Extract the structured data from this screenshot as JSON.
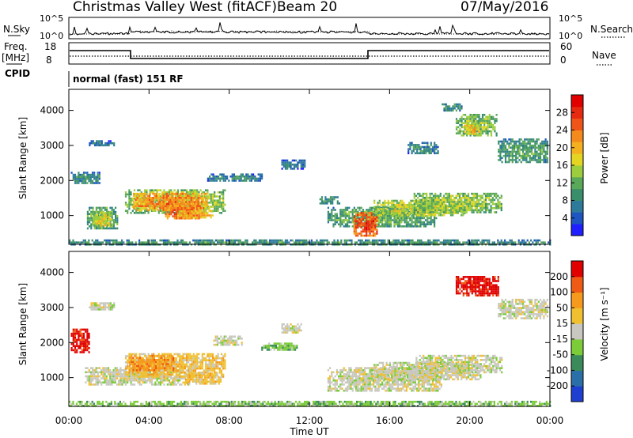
{
  "header": {
    "station": "Christmas Valley West (fitACF)",
    "beam": "Beam 20",
    "date": "07/May/2016"
  },
  "panels": {
    "nsky": {
      "label": "N.Sky",
      "ticks": [
        "10^5",
        "10^0"
      ]
    },
    "nsearch": {
      "label": "N.Search",
      "ticks": [
        "10^5",
        "10^0"
      ]
    },
    "freq": {
      "label_line1": "Freq.",
      "label_line2": "[MHz]",
      "ticks": [
        "18",
        "8"
      ]
    },
    "nave": {
      "label": "Nave",
      "ticks": [
        "60",
        "0"
      ]
    },
    "cpid": {
      "label": "CPID",
      "value": "normal (fast) 151 RF"
    }
  },
  "chart_data": [
    {
      "type": "heatmap",
      "name": "power",
      "ylabel": "Slant Range [km]",
      "xlabel": "Time UT",
      "xlim": [
        "00:00",
        "24:00"
      ],
      "ylim": [
        180,
        4600
      ],
      "x_ticks": [
        "00:00",
        "04:00",
        "08:00",
        "12:00",
        "16:00",
        "20:00",
        "00:00"
      ],
      "y_ticks": [
        1000,
        2000,
        3000,
        4000
      ],
      "colorbar": {
        "label": "Power [dB]",
        "ticks": [
          "4",
          "8",
          "12",
          "16",
          "20",
          "24",
          "28"
        ],
        "range": [
          0,
          32
        ],
        "colors": [
          "#1f1fff",
          "#1f55c0",
          "#2e7a9a",
          "#3a8f6a",
          "#5aa85a",
          "#9ccd3c",
          "#e3d522",
          "#f5b020",
          "#f58a1c",
          "#ef5518",
          "#e52a10",
          "#e00000"
        ]
      },
      "regions": [
        {
          "t0": 0.9,
          "t1": 2.4,
          "r0": 650,
          "r1": 1250,
          "level": 13
        },
        {
          "t0": 1.2,
          "t1": 2.1,
          "r0": 700,
          "r1": 1100,
          "level": 18
        },
        {
          "t0": 2.8,
          "t1": 7.8,
          "r0": 1100,
          "r1": 1750,
          "level": 16
        },
        {
          "t0": 3.2,
          "t1": 6.9,
          "r0": 1150,
          "r1": 1650,
          "level": 24
        },
        {
          "t0": 4.8,
          "t1": 6.6,
          "r0": 900,
          "r1": 1300,
          "level": 26
        },
        {
          "t0": 5.4,
          "t1": 7.2,
          "r0": 950,
          "r1": 1150,
          "level": 22
        },
        {
          "t0": 1.0,
          "t1": 2.3,
          "r0": 3000,
          "r1": 3150,
          "level": 7
        },
        {
          "t0": 0.1,
          "t1": 1.5,
          "r0": 1950,
          "r1": 2250,
          "level": 9
        },
        {
          "t0": 6.9,
          "t1": 9.6,
          "r0": 2000,
          "r1": 2200,
          "level": 8
        },
        {
          "t0": 12.9,
          "t1": 18.3,
          "r0": 700,
          "r1": 1250,
          "level": 12
        },
        {
          "t0": 14.2,
          "t1": 15.4,
          "r0": 450,
          "r1": 1100,
          "level": 28
        },
        {
          "t0": 15.2,
          "t1": 19.8,
          "r0": 1000,
          "r1": 1450,
          "level": 17
        },
        {
          "t0": 17.2,
          "t1": 21.6,
          "r0": 1100,
          "r1": 1650,
          "level": 15
        },
        {
          "t0": 12.5,
          "t1": 13.5,
          "r0": 1350,
          "r1": 1550,
          "level": 10
        },
        {
          "t0": 19.3,
          "t1": 21.3,
          "r0": 3300,
          "r1": 3900,
          "level": 14
        },
        {
          "t0": 19.7,
          "t1": 20.4,
          "r0": 3350,
          "r1": 3650,
          "level": 20
        },
        {
          "t0": 21.4,
          "t1": 23.9,
          "r0": 2550,
          "r1": 3200,
          "level": 11
        },
        {
          "t0": 16.9,
          "t1": 18.4,
          "r0": 2750,
          "r1": 3100,
          "level": 8
        },
        {
          "t0": 10.6,
          "t1": 11.8,
          "r0": 2350,
          "r1": 2600,
          "level": 7
        },
        {
          "t0": 18.6,
          "t1": 19.6,
          "r0": 4000,
          "r1": 4200,
          "level": 9
        },
        {
          "t0": 0.0,
          "t1": 24.0,
          "r0": 180,
          "r1": 320,
          "level": 10
        }
      ]
    },
    {
      "type": "heatmap",
      "name": "velocity",
      "ylabel": "Slant Range [km]",
      "xlabel": "Time UT",
      "xlim": [
        "00:00",
        "24:00"
      ],
      "ylim": [
        180,
        4600
      ],
      "x_ticks": [
        "00:00",
        "04:00",
        "08:00",
        "12:00",
        "16:00",
        "20:00",
        "00:00"
      ],
      "y_ticks": [
        1000,
        2000,
        3000,
        4000
      ],
      "colorbar": {
        "label": "Velocity [m s⁻¹]",
        "ticks": [
          "200",
          "100",
          "50",
          "15",
          "-15",
          "-50",
          "-100",
          "-200"
        ],
        "colors": [
          "#1f3fd0",
          "#2b6fa8",
          "#3a8a5a",
          "#7ccc3a",
          "#c8c8c0",
          "#f0c030",
          "#f59a1c",
          "#ef5a14",
          "#e00000"
        ]
      },
      "regions": [
        {
          "t0": 0.8,
          "t1": 6.0,
          "r0": 800,
          "r1": 1300,
          "level": 4
        },
        {
          "t0": 2.8,
          "t1": 7.8,
          "r0": 1000,
          "r1": 1700,
          "level": 5
        },
        {
          "t0": 3.0,
          "t1": 5.2,
          "r0": 1200,
          "r1": 1650,
          "level": 6
        },
        {
          "t0": 5.8,
          "t1": 7.6,
          "r0": 800,
          "r1": 1150,
          "level": 5
        },
        {
          "t0": 0.1,
          "t1": 1.0,
          "r0": 1700,
          "r1": 2400,
          "level": 8
        },
        {
          "t0": 1.0,
          "t1": 2.3,
          "r0": 2950,
          "r1": 3150,
          "level": 4
        },
        {
          "t0": 7.2,
          "t1": 8.6,
          "r0": 1950,
          "r1": 2200,
          "level": 4
        },
        {
          "t0": 9.6,
          "t1": 11.4,
          "r0": 1800,
          "r1": 2000,
          "level": 3
        },
        {
          "t0": 10.6,
          "t1": 11.6,
          "r0": 2300,
          "r1": 2550,
          "level": 4
        },
        {
          "t0": 12.9,
          "t1": 18.6,
          "r0": 600,
          "r1": 1300,
          "level": 4
        },
        {
          "t0": 15.2,
          "t1": 20.5,
          "r0": 950,
          "r1": 1450,
          "level": 4
        },
        {
          "t0": 17.3,
          "t1": 21.6,
          "r0": 1150,
          "r1": 1650,
          "level": 4
        },
        {
          "t0": 19.3,
          "t1": 21.4,
          "r0": 3350,
          "r1": 3900,
          "level": 8
        },
        {
          "t0": 21.4,
          "t1": 23.9,
          "r0": 2700,
          "r1": 3250,
          "level": 4
        },
        {
          "t0": 0.0,
          "t1": 24.0,
          "r0": 180,
          "r1": 340,
          "level": 3
        }
      ]
    }
  ]
}
